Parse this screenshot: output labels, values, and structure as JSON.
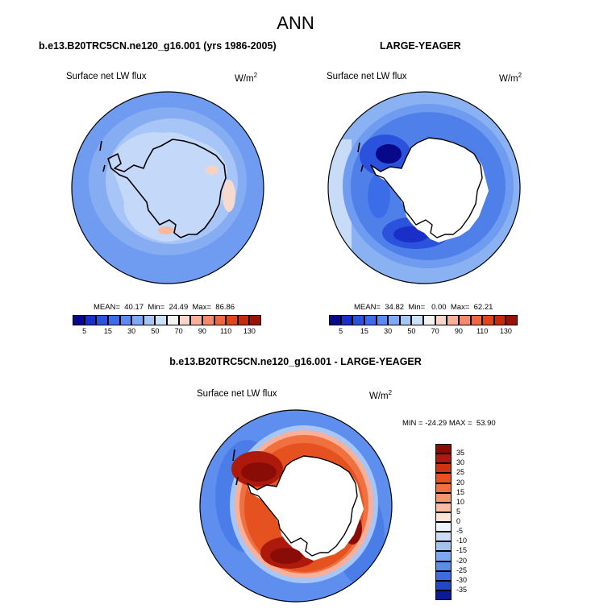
{
  "title": "ANN",
  "panels": [
    {
      "subtitle": "b.e13.B20TRC5CN.ne120_g16.001 (yrs 1986-2005)",
      "left_label": "Surface net LW flux",
      "units": "W/m",
      "units_sup": "2",
      "stats": "MEAN=  40.17  Min=  24.49  Max=  86.86"
    },
    {
      "subtitle": "LARGE-YEAGER",
      "left_label": "Surface net LW flux",
      "units": "W/m",
      "units_sup": "2",
      "stats": "MEAN=  34.82  Min=   0.00  Max=  62.21"
    },
    {
      "subtitle": "b.e13.B20TRC5CN.ne120_g16.001 - LARGE-YEAGER",
      "left_label": "Surface net LW flux",
      "units": "W/m",
      "units_sup": "2",
      "stats": "MIN = -24.29 MAX =  53.90"
    }
  ],
  "colorbar_top": {
    "colors": [
      "#08088a",
      "#1a2fc8",
      "#2a52dc",
      "#3c6de8",
      "#5a8cf0",
      "#7ea9f4",
      "#a5c6f7",
      "#cbe0fa",
      "#f3f3f3",
      "#fbd6c6",
      "#f8b09a",
      "#f58a6a",
      "#ef6640",
      "#e0441c",
      "#c42a0e",
      "#961405"
    ],
    "ticks": [
      "5",
      "15",
      "30",
      "50",
      "70",
      "90",
      "110",
      "130"
    ]
  },
  "colorbar_diff": {
    "colors": [
      "#8a0c06",
      "#ad1a0c",
      "#cf3412",
      "#e55220",
      "#f07040",
      "#f69570",
      "#fbbca0",
      "#fde3d6",
      "#eef4fb",
      "#c8dcf6",
      "#a2c2f2",
      "#7da7ee",
      "#5c8be8",
      "#3d6ce0",
      "#2447c8",
      "#0b1b96"
    ],
    "ticks": [
      "35",
      "30",
      "25",
      "20",
      "15",
      "10",
      "5",
      "0",
      "-5",
      "-10",
      "-15",
      "-20",
      "-25",
      "-30",
      "-35"
    ]
  },
  "chart_data": [
    {
      "type": "heatmap",
      "title": "b.e13.B20TRC5CN.ne120_g16.001 (yrs 1986-2005)",
      "field": "Surface net LW flux",
      "units": "W/m2",
      "mean": 40.17,
      "min": 24.49,
      "max": 86.86,
      "contour_levels": [
        5,
        10,
        15,
        20,
        30,
        40,
        50,
        60,
        70,
        80,
        90,
        100,
        110,
        120,
        130
      ]
    },
    {
      "type": "heatmap",
      "title": "LARGE-YEAGER",
      "field": "Surface net LW flux",
      "units": "W/m2",
      "mean": 34.82,
      "min": 0.0,
      "max": 62.21,
      "contour_levels": [
        5,
        10,
        15,
        20,
        30,
        40,
        50,
        60,
        70,
        80,
        90,
        100,
        110,
        120,
        130
      ]
    },
    {
      "type": "heatmap",
      "title": "b.e13.B20TRC5CN.ne120_g16.001 - LARGE-YEAGER",
      "field": "Surface net LW flux",
      "units": "W/m2",
      "min": -24.29,
      "max": 53.9,
      "contour_levels": [
        -35,
        -30,
        -25,
        -20,
        -15,
        -10,
        -5,
        0,
        5,
        10,
        15,
        20,
        25,
        30,
        35
      ]
    }
  ]
}
